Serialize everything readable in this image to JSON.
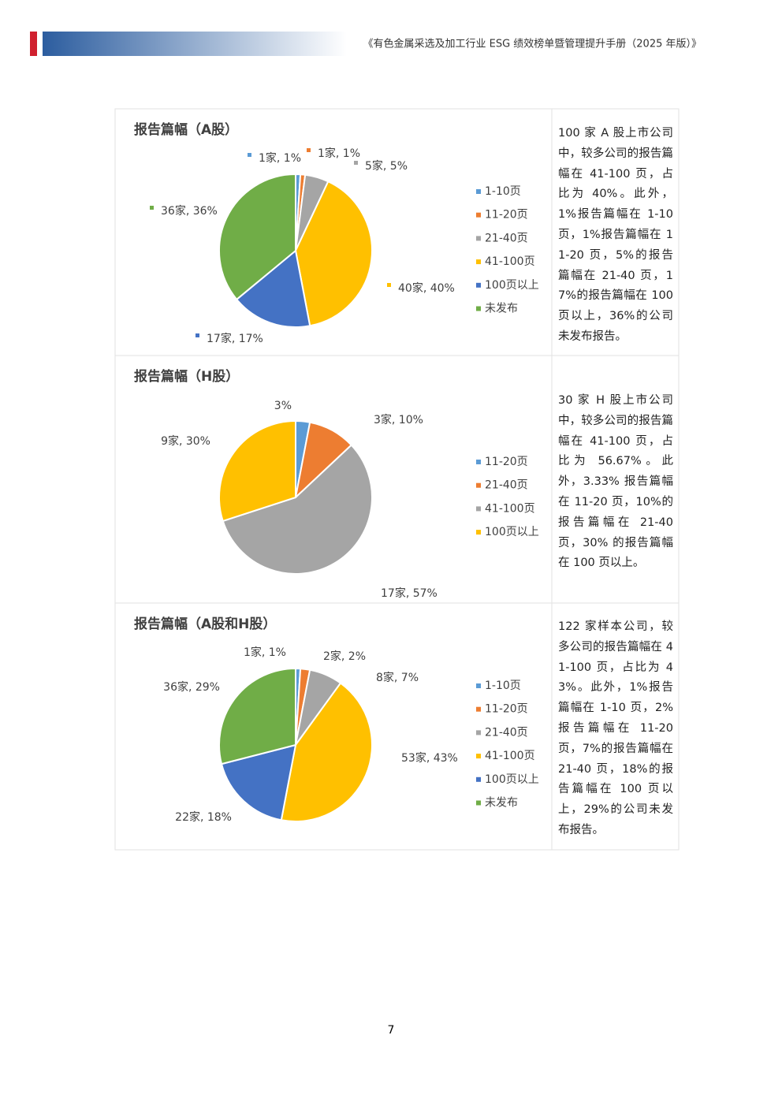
{
  "header": {
    "title": "《有色金属采选及加工行业 ESG 绩效榜单暨管理提升手册（2025 年版）》"
  },
  "chart_data": [
    {
      "type": "pie",
      "title": "报告篇幅（A股）",
      "categories": [
        "1-10页",
        "11-20页",
        "21-40页",
        "41-100页",
        "100页以上",
        "未发布"
      ],
      "values": [
        1,
        1,
        5,
        40,
        17,
        36
      ],
      "value_labels": [
        "1家, 1%",
        "1家, 1%",
        "5家, 5%",
        "40家, 40%",
        "17家, 17%",
        "36家, 36%"
      ],
      "colors": [
        "#5b9bd5",
        "#ed7d31",
        "#a5a5a5",
        "#ffc000",
        "#4472c4",
        "#70ad47"
      ]
    },
    {
      "type": "pie",
      "title": "报告篇幅（H股）",
      "categories": [
        "11-20页",
        "21-40页",
        "41-100页",
        "100页以上"
      ],
      "values": [
        3,
        10,
        57,
        30
      ],
      "value_labels": [
        "3%",
        "3家, 10%",
        "17家, 57%",
        "9家, 30%"
      ],
      "colors": [
        "#5b9bd5",
        "#ed7d31",
        "#a5a5a5",
        "#ffc000"
      ]
    },
    {
      "type": "pie",
      "title": "报告篇幅（A股和H股）",
      "categories": [
        "1-10页",
        "11-20页",
        "21-40页",
        "41-100页",
        "100页以上",
        "未发布"
      ],
      "values": [
        1,
        2,
        7,
        43,
        18,
        29
      ],
      "value_labels": [
        "1家, 1%",
        "2家, 2%",
        "8家, 7%",
        "53家, 43%",
        "22家, 18%",
        "36家, 29%"
      ],
      "colors": [
        "#5b9bd5",
        "#ed7d31",
        "#a5a5a5",
        "#ffc000",
        "#4472c4",
        "#70ad47"
      ]
    }
  ],
  "descriptions": [
    "100 家 A 股上市公司中，较多公司的报告篇幅在 41-100 页，占比为 40%。此外，1%报告篇幅在 1-10 页，1%报告篇幅在 11-20 页，5%的报告篇幅在 21-40 页，17%的报告篇幅在 100 页以上，36%的公司未发布报告。",
    "30 家 H 股上市公司中，较多公司的报告篇幅在 41-100 页，占比为 56.67%。此外，3.33% 报告篇幅在 11-20 页，10%的报告篇幅在 21-40 页，30% 的报告篇幅在 100 页以上。",
    "122 家样本公司，较多公司的报告篇幅在 41-100 页，占比为 43%。此外，1%报告篇幅在 1-10 页，2%报告篇幅在 11-20 页，7%的报告篇幅在 21-40 页，18%的报告篇幅在 100 页以上，29%的公司未发布报告。"
  ],
  "page_number": "7"
}
